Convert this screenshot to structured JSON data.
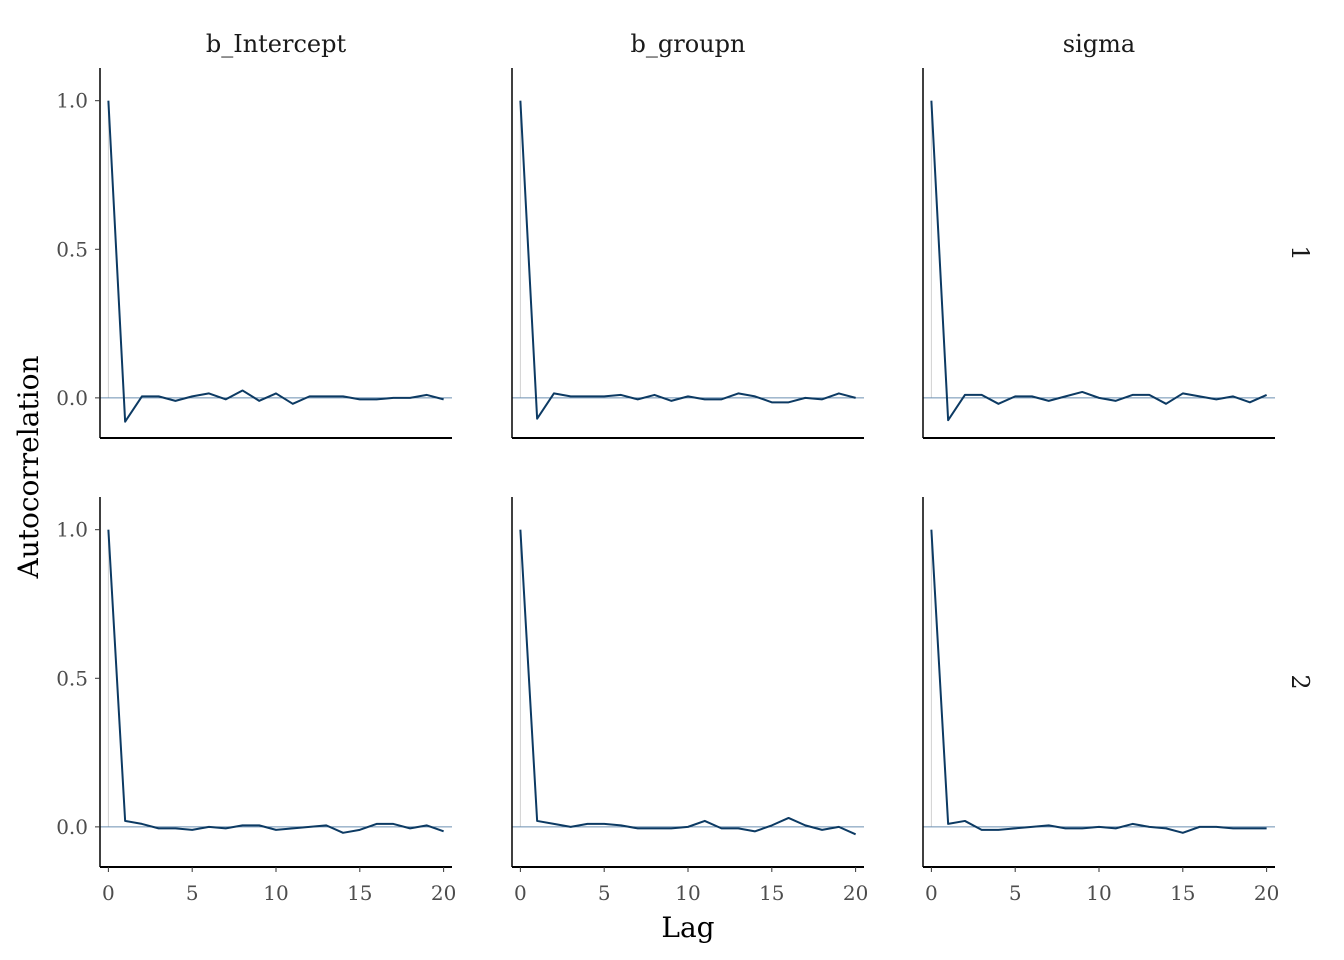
{
  "chart_data": {
    "type": "line",
    "ylabel": "Autocorrelation",
    "xlabel": "Lag",
    "facet_cols": [
      "b_Intercept",
      "b_groupn",
      "sigma"
    ],
    "facet_rows": [
      "1",
      "2"
    ],
    "xlim": [
      -0.5,
      20.5
    ],
    "ylim": [
      -0.135,
      1.11
    ],
    "x_ticks": [
      0,
      5,
      10,
      15,
      20
    ],
    "y_ticks": [
      0.0,
      0.5,
      1.0
    ],
    "x_tick_labels": [
      "0",
      "5",
      "10",
      "15",
      "20"
    ],
    "y_tick_labels": [
      "0.0",
      "0.5",
      "1.0"
    ],
    "lags": [
      0,
      1,
      2,
      3,
      4,
      5,
      6,
      7,
      8,
      9,
      10,
      11,
      12,
      13,
      14,
      15,
      16,
      17,
      18,
      19,
      20
    ],
    "colors": {
      "line": "#0c3a63",
      "zero_line": "#6b8fb0",
      "vline": "#d0d0d0",
      "axis": "#000000"
    },
    "panels": [
      {
        "row": "1",
        "col": "b_Intercept",
        "values": [
          1.0,
          -0.08,
          0.005,
          0.005,
          -0.01,
          0.005,
          0.015,
          -0.005,
          0.025,
          -0.01,
          0.015,
          -0.02,
          0.005,
          0.005,
          0.005,
          -0.005,
          -0.005,
          0.0,
          0.0,
          0.01,
          -0.005
        ]
      },
      {
        "row": "1",
        "col": "b_groupn",
        "values": [
          1.0,
          -0.07,
          0.015,
          0.005,
          0.005,
          0.005,
          0.01,
          -0.005,
          0.01,
          -0.01,
          0.005,
          -0.005,
          -0.005,
          0.015,
          0.005,
          -0.015,
          -0.015,
          0.0,
          -0.005,
          0.015,
          0.0
        ]
      },
      {
        "row": "1",
        "col": "sigma",
        "values": [
          1.0,
          -0.075,
          0.01,
          0.01,
          -0.02,
          0.005,
          0.005,
          -0.01,
          0.005,
          0.02,
          0.0,
          -0.01,
          0.01,
          0.01,
          -0.02,
          0.015,
          0.005,
          -0.005,
          0.005,
          -0.015,
          0.01
        ]
      },
      {
        "row": "2",
        "col": "b_Intercept",
        "values": [
          1.0,
          0.02,
          0.01,
          -0.005,
          -0.005,
          -0.01,
          0.0,
          -0.005,
          0.005,
          0.005,
          -0.01,
          -0.005,
          0.0,
          0.005,
          -0.02,
          -0.01,
          0.01,
          0.01,
          -0.005,
          0.005,
          -0.015
        ]
      },
      {
        "row": "2",
        "col": "b_groupn",
        "values": [
          1.0,
          0.02,
          0.01,
          0.0,
          0.01,
          0.01,
          0.005,
          -0.005,
          -0.005,
          -0.005,
          0.0,
          0.02,
          -0.005,
          -0.005,
          -0.015,
          0.005,
          0.03,
          0.005,
          -0.01,
          0.0,
          -0.025
        ]
      },
      {
        "row": "2",
        "col": "sigma",
        "values": [
          1.0,
          0.01,
          0.02,
          -0.01,
          -0.01,
          -0.005,
          0.0,
          0.005,
          -0.005,
          -0.005,
          0.0,
          -0.005,
          0.01,
          0.0,
          -0.005,
          -0.02,
          0.0,
          0.0,
          -0.005,
          -0.005,
          -0.005
        ]
      }
    ]
  }
}
